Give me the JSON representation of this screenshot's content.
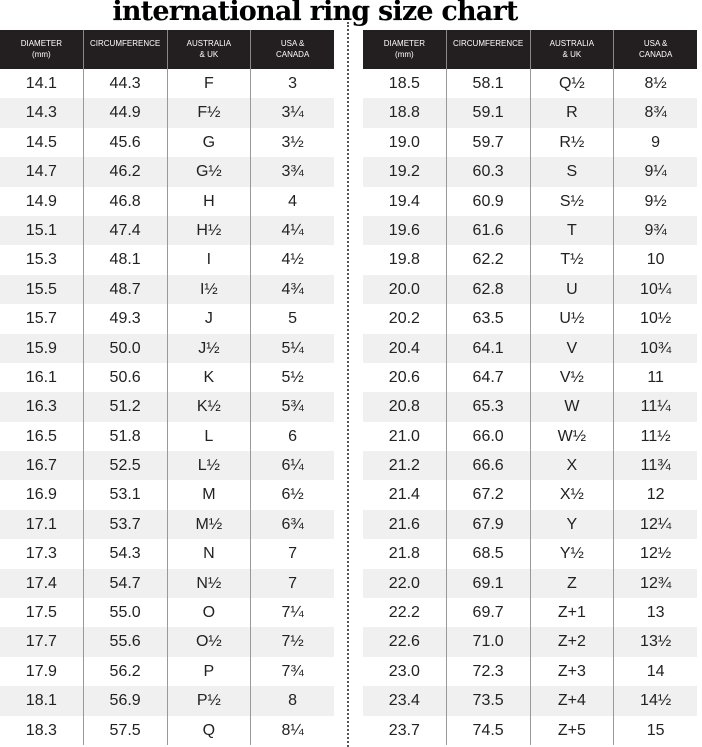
{
  "title": "international ring size chart",
  "headers": [
    [
      "DIAMETER",
      "(mm)"
    ],
    [
      "CIRCUMFERENCE",
      ""
    ],
    [
      "AUSTRALIA",
      "& UK"
    ],
    [
      "USA &",
      "CANADA"
    ]
  ],
  "tables": [
    {
      "rows": [
        [
          "14.1",
          "44.3",
          "F",
          "3"
        ],
        [
          "14.3",
          "44.9",
          "F½",
          "3¼"
        ],
        [
          "14.5",
          "45.6",
          "G",
          "3½"
        ],
        [
          "14.7",
          "46.2",
          "G½",
          "3¾"
        ],
        [
          "14.9",
          "46.8",
          "H",
          "4"
        ],
        [
          "15.1",
          "47.4",
          "H½",
          "4¼"
        ],
        [
          "15.3",
          "48.1",
          "I",
          "4½"
        ],
        [
          "15.5",
          "48.7",
          "I½",
          "4¾"
        ],
        [
          "15.7",
          "49.3",
          "J",
          "5"
        ],
        [
          "15.9",
          "50.0",
          "J½",
          "5¼"
        ],
        [
          "16.1",
          "50.6",
          "K",
          "5½"
        ],
        [
          "16.3",
          "51.2",
          "K½",
          "5¾"
        ],
        [
          "16.5",
          "51.8",
          "L",
          "6"
        ],
        [
          "16.7",
          "52.5",
          "L½",
          "6¼"
        ],
        [
          "16.9",
          "53.1",
          "M",
          "6½"
        ],
        [
          "17.1",
          "53.7",
          "M½",
          "6¾"
        ],
        [
          "17.3",
          "54.3",
          "N",
          "7"
        ],
        [
          "17.4",
          "54.7",
          "N½",
          "7"
        ],
        [
          "17.5",
          "55.0",
          "O",
          "7¼"
        ],
        [
          "17.7",
          "55.6",
          "O½",
          "7½"
        ],
        [
          "17.9",
          "56.2",
          "P",
          "7¾"
        ],
        [
          "18.1",
          "56.9",
          "P½",
          "8"
        ],
        [
          "18.3",
          "57.5",
          "Q",
          "8¼"
        ]
      ]
    },
    {
      "rows": [
        [
          "18.5",
          "58.1",
          "Q½",
          "8½"
        ],
        [
          "18.8",
          "59.1",
          "R",
          "8¾"
        ],
        [
          "19.0",
          "59.7",
          "R½",
          "9"
        ],
        [
          "19.2",
          "60.3",
          "S",
          "9¼"
        ],
        [
          "19.4",
          "60.9",
          "S½",
          "9½"
        ],
        [
          "19.6",
          "61.6",
          "T",
          "9¾"
        ],
        [
          "19.8",
          "62.2",
          "T½",
          "10"
        ],
        [
          "20.0",
          "62.8",
          "U",
          "10¼"
        ],
        [
          "20.2",
          "63.5",
          "U½",
          "10½"
        ],
        [
          "20.4",
          "64.1",
          "V",
          "10¾"
        ],
        [
          "20.6",
          "64.7",
          "V½",
          "11"
        ],
        [
          "20.8",
          "65.3",
          "W",
          "11¼"
        ],
        [
          "21.0",
          "66.0",
          "W½",
          "11½"
        ],
        [
          "21.2",
          "66.6",
          "X",
          "11¾"
        ],
        [
          "21.4",
          "67.2",
          "X½",
          "12"
        ],
        [
          "21.6",
          "67.9",
          "Y",
          "12¼"
        ],
        [
          "21.8",
          "68.5",
          "Y½",
          "12½"
        ],
        [
          "22.0",
          "69.1",
          "Z",
          "12¾"
        ],
        [
          "22.2",
          "69.7",
          "Z+1",
          "13"
        ],
        [
          "22.6",
          "71.0",
          "Z+2",
          "13½"
        ],
        [
          "23.0",
          "72.3",
          "Z+3",
          "14"
        ],
        [
          "23.4",
          "73.5",
          "Z+4",
          "14½"
        ],
        [
          "23.7",
          "74.5",
          "Z+5",
          "15"
        ]
      ]
    }
  ]
}
